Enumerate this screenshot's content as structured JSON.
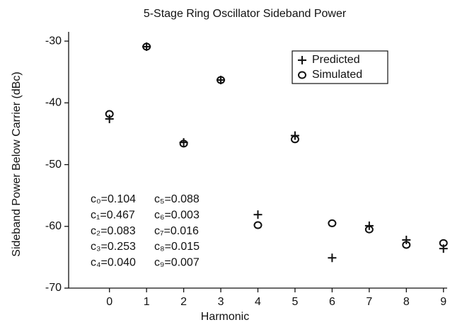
{
  "chart_data": {
    "type": "scatter",
    "title": "5-Stage Ring Oscillator Sideband Power",
    "xlabel": "Harmonic",
    "ylabel": "Sideband Power Below Carrier (dBc)",
    "x": [
      0,
      1,
      2,
      3,
      4,
      5,
      6,
      7,
      8,
      9
    ],
    "series": [
      {
        "name": "Predicted",
        "color": "#111111",
        "marker": "plus",
        "values": [
          -42.6,
          -30.9,
          -46.4,
          -36.3,
          -58.1,
          -45.3,
          -65.1,
          -59.9,
          -62.2,
          -63.6
        ]
      },
      {
        "name": "Simulated",
        "color": "#111111",
        "marker": "circle",
        "values": [
          -41.8,
          -30.9,
          -46.6,
          -36.3,
          -59.8,
          -45.9,
          -59.5,
          -60.5,
          -63.0,
          -62.7
        ]
      }
    ],
    "xlim": [
      -1.1,
      9.1
    ],
    "xticks": [
      0,
      1,
      2,
      3,
      4,
      5,
      6,
      7,
      8,
      9
    ],
    "ylim": [
      -70,
      -28.5
    ],
    "yticks": [
      -70,
      -60,
      -50,
      -40,
      -30
    ],
    "legend": "upper right",
    "annotations": [
      "c₀=0.104",
      "c₁=0.467",
      "c₂=0.083",
      "c₃=0.253",
      "c₄=0.040",
      "c₅=0.088",
      "c₆=0.003",
      "c₇=0.016",
      "c₈=0.015",
      "c₉=0.007"
    ]
  }
}
